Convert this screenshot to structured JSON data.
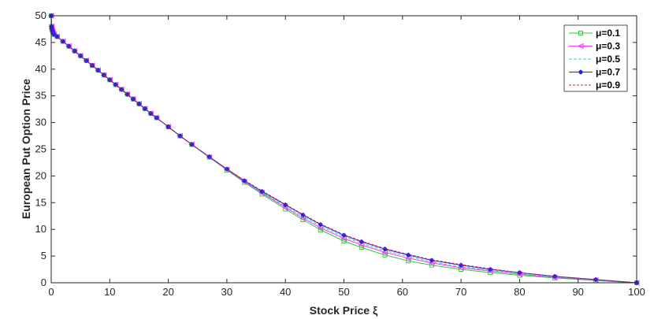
{
  "chart_data": {
    "type": "line",
    "title": "",
    "xlabel": "Stock Price ξ",
    "ylabel": "European Put Option Price",
    "xlim": [
      0,
      100
    ],
    "ylim": [
      0,
      50
    ],
    "xticks": [
      "0",
      "10",
      "20",
      "30",
      "40",
      "50",
      "60",
      "70",
      "80",
      "90",
      "100"
    ],
    "yticks": [
      "0",
      "5",
      "10",
      "15",
      "20",
      "25",
      "30",
      "35",
      "40",
      "45",
      "50"
    ],
    "grid": false,
    "legend": "top-right",
    "x": [
      0,
      0.05,
      0.1,
      0.2,
      0.3,
      0.5,
      1,
      2,
      3,
      4,
      5,
      6,
      7,
      8,
      9,
      10,
      11,
      12,
      13,
      14,
      15,
      16,
      17,
      18,
      20,
      22,
      24,
      27,
      30,
      33,
      36,
      40,
      43,
      46,
      50,
      53,
      57,
      61,
      65,
      70,
      75,
      80,
      86,
      93,
      100
    ],
    "series": [
      {
        "name": "μ=0.1",
        "color": "#33cc33",
        "marker": "square",
        "values": [
          50,
          48.0,
          47.6,
          47.2,
          46.9,
          46.5,
          46.1,
          45.2,
          44.3,
          43.4,
          42.5,
          41.6,
          40.7,
          39.8,
          38.9,
          38.0,
          37.1,
          36.2,
          35.3,
          34.4,
          33.5,
          32.6,
          31.7,
          30.9,
          29.2,
          27.5,
          25.9,
          23.5,
          21.1,
          18.8,
          16.6,
          13.8,
          11.8,
          9.9,
          7.8,
          6.6,
          5.2,
          4.1,
          3.3,
          2.5,
          1.9,
          1.4,
          0.9,
          0.4,
          0
        ]
      },
      {
        "name": "μ=0.3",
        "color": "#ff33ff",
        "marker": "triangle-left",
        "values": [
          50,
          48.0,
          47.6,
          47.2,
          46.9,
          46.5,
          46.1,
          45.2,
          44.3,
          43.4,
          42.5,
          41.6,
          40.7,
          39.8,
          38.9,
          38.0,
          37.1,
          36.2,
          35.3,
          34.4,
          33.5,
          32.6,
          31.7,
          30.9,
          29.2,
          27.5,
          25.9,
          23.5,
          21.2,
          18.9,
          16.8,
          14.1,
          12.1,
          10.3,
          8.3,
          7.1,
          5.7,
          4.6,
          3.7,
          2.8,
          2.2,
          1.6,
          1.0,
          0.5,
          0
        ]
      },
      {
        "name": "μ=0.5",
        "color": "#33cccc",
        "marker": "none",
        "values": [
          50,
          48.0,
          47.6,
          47.2,
          46.9,
          46.5,
          46.1,
          45.2,
          44.3,
          43.4,
          42.5,
          41.6,
          40.7,
          39.8,
          38.9,
          38.0,
          37.1,
          36.2,
          35.3,
          34.4,
          33.5,
          32.6,
          31.7,
          30.9,
          29.2,
          27.5,
          25.9,
          23.5,
          21.2,
          19.0,
          16.9,
          14.3,
          12.4,
          10.6,
          8.6,
          7.4,
          6.0,
          4.9,
          3.9,
          3.0,
          2.3,
          1.7,
          1.1,
          0.5,
          0
        ]
      },
      {
        "name": "μ=0.7",
        "color": "#2222ee",
        "marker": "star",
        "values": [
          50,
          48.0,
          47.6,
          47.2,
          46.9,
          46.5,
          46.1,
          45.2,
          44.3,
          43.4,
          42.5,
          41.6,
          40.7,
          39.8,
          38.9,
          38.0,
          37.1,
          36.2,
          35.3,
          34.4,
          33.5,
          32.6,
          31.7,
          30.9,
          29.2,
          27.5,
          25.9,
          23.6,
          21.3,
          19.1,
          17.1,
          14.6,
          12.7,
          10.9,
          8.9,
          7.7,
          6.3,
          5.2,
          4.2,
          3.3,
          2.5,
          1.9,
          1.2,
          0.6,
          0
        ]
      },
      {
        "name": "μ=0.9",
        "color": "#cc2222",
        "marker": "none",
        "values": [
          50,
          48.0,
          47.6,
          47.2,
          46.9,
          46.5,
          46.1,
          45.2,
          44.3,
          43.4,
          42.5,
          41.6,
          40.7,
          39.8,
          38.9,
          38.0,
          37.1,
          36.2,
          35.3,
          34.4,
          33.5,
          32.6,
          31.7,
          30.9,
          29.2,
          27.5,
          25.9,
          23.6,
          21.3,
          19.2,
          17.2,
          14.7,
          12.8,
          11.0,
          9.0,
          7.8,
          6.4,
          5.3,
          4.3,
          3.4,
          2.6,
          1.9,
          1.2,
          0.6,
          0
        ]
      }
    ]
  }
}
